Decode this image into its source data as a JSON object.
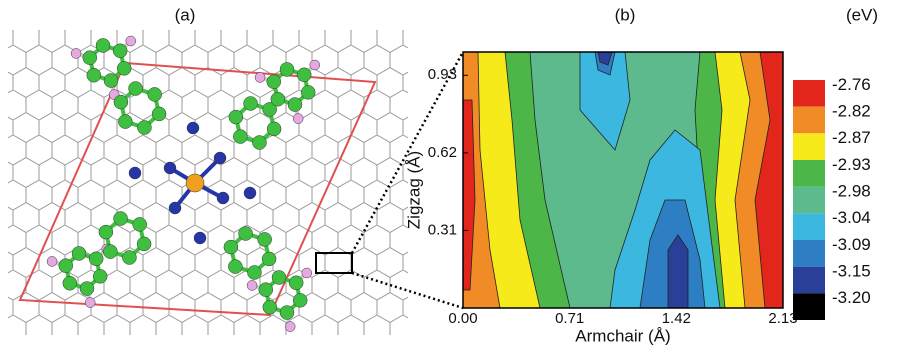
{
  "panel_a": {
    "label": "(a)"
  },
  "panel_b": {
    "label": "(b)",
    "x_label": "Armchair (Å)",
    "y_label": "Zigzag (Å)",
    "x_ticks": [
      "0.00",
      "0.71",
      "1.42",
      "2.13"
    ],
    "y_ticks": [
      "0.31",
      "0.62",
      "0.93"
    ]
  },
  "colorbar": {
    "unit": "(eV)",
    "levels": [
      {
        "label": "-2.76",
        "color": "#e3261c"
      },
      {
        "label": "-2.82",
        "color": "#f08b25"
      },
      {
        "label": "-2.87",
        "color": "#f6ea1b"
      },
      {
        "label": "-2.93",
        "color": "#4cb748"
      },
      {
        "label": "-2.98",
        "color": "#5cba8c"
      },
      {
        "label": "-3.04",
        "color": "#3bb7e0"
      },
      {
        "label": "-3.09",
        "color": "#2e7ec3"
      },
      {
        "label": "-3.15",
        "color": "#2a3f98"
      },
      {
        "label": "-3.20",
        "color": "#000000"
      }
    ]
  }
}
